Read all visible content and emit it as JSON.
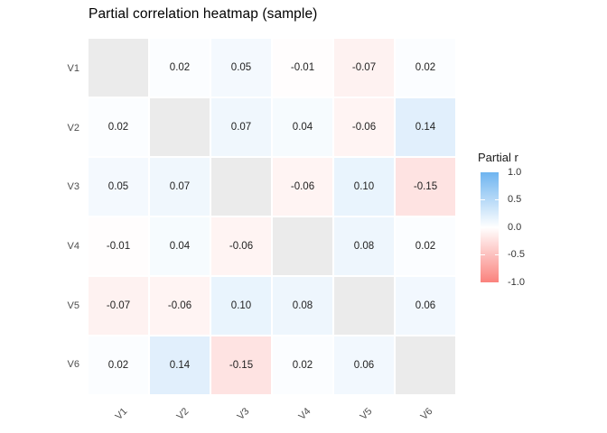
{
  "chart_data": {
    "type": "heatmap",
    "title": "Partial correlation heatmap (sample)",
    "x_categories": [
      "V1",
      "V2",
      "V3",
      "V4",
      "V5",
      "V6"
    ],
    "y_categories": [
      "V1",
      "V2",
      "V3",
      "V4",
      "V5",
      "V6"
    ],
    "values": [
      [
        null,
        0.02,
        0.05,
        -0.01,
        -0.07,
        0.02
      ],
      [
        0.02,
        null,
        0.07,
        0.04,
        -0.06,
        0.14
      ],
      [
        0.05,
        0.07,
        null,
        -0.06,
        0.1,
        -0.15
      ],
      [
        -0.01,
        0.04,
        -0.06,
        null,
        0.08,
        0.02
      ],
      [
        -0.07,
        -0.06,
        0.1,
        0.08,
        null,
        0.06
      ],
      [
        0.02,
        0.14,
        -0.15,
        0.02,
        0.06,
        null
      ]
    ],
    "cell_labels": [
      [
        "",
        "0.02",
        "0.05",
        "-0.01",
        "-0.07",
        "0.02"
      ],
      [
        "0.02",
        "",
        "0.07",
        "0.04",
        "-0.06",
        "0.14"
      ],
      [
        "0.05",
        "0.07",
        "",
        "-0.06",
        "0.10",
        "-0.15"
      ],
      [
        "-0.01",
        "0.04",
        "-0.06",
        "",
        "0.08",
        "0.02"
      ],
      [
        "-0.07",
        "-0.06",
        "0.10",
        "0.08",
        "",
        "0.06"
      ],
      [
        "0.02",
        "0.14",
        "-0.15",
        "0.02",
        "0.06",
        ""
      ]
    ],
    "scale_limits": [
      -1,
      1
    ],
    "legend": {
      "title": "Partial r",
      "position": "right",
      "tick_labels": [
        "1.0",
        "0.5",
        "0.0",
        "-0.5",
        "-1.0"
      ],
      "tick_values": [
        1.0,
        0.5,
        0.0,
        -0.5,
        -1.0
      ]
    },
    "colors": {
      "high": "#6EB4F0",
      "mid": "#FFFFFF",
      "low": "#FA827D",
      "na_fill": "#EBEBEB",
      "axis_text": "#4D4D4D",
      "cell_text": "#1F1F1F",
      "legend_text": "#333333",
      "title_text": "#000000",
      "background": "#FFFFFF"
    },
    "grid": false
  }
}
